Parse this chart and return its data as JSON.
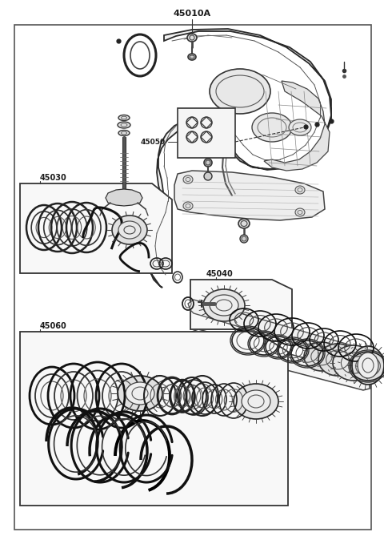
{
  "bg_color": "#ffffff",
  "border_color": "#444444",
  "line_color": "#333333",
  "text_color": "#1a1a1a",
  "fig_width": 4.8,
  "fig_height": 6.69,
  "dpi": 100,
  "title": "45010A",
  "label_45050": "45050",
  "label_45030": "45030",
  "label_45040": "45040",
  "label_45060": "45060"
}
